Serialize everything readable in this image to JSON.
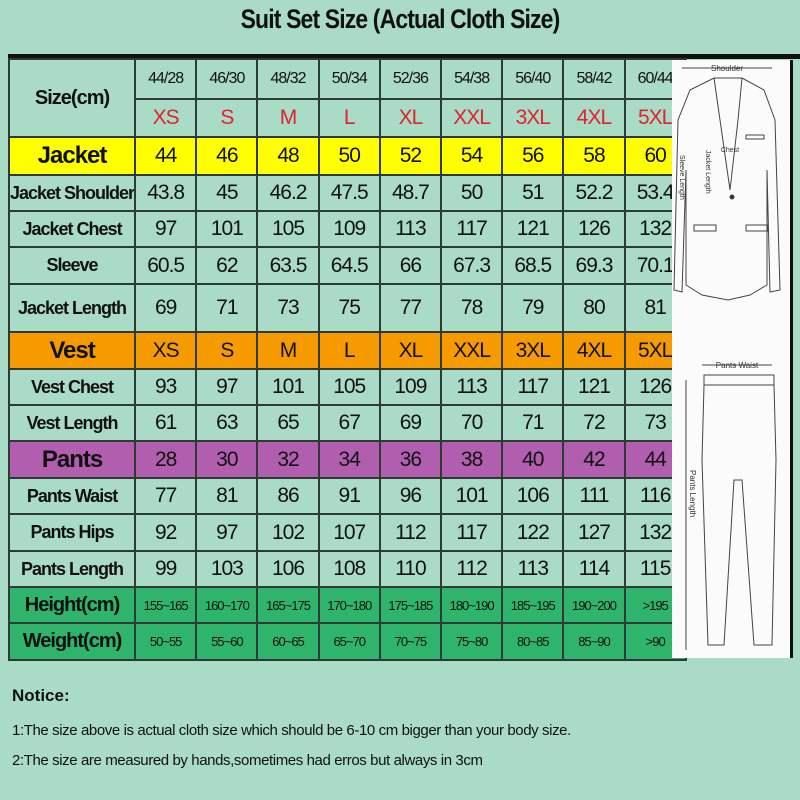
{
  "title": "Suit Set Size (Actual Cloth Size)",
  "colors": {
    "background": "#a9dbc7",
    "jacket": "#ffff00",
    "vest": "#f59b00",
    "pants": "#b15eae",
    "body": "#2fb46b",
    "size_letter": "#e0232c"
  },
  "table": {
    "size_label": "Size(cm)",
    "size_codes": [
      "44/28",
      "46/30",
      "48/32",
      "50/34",
      "52/36",
      "54/38",
      "56/40",
      "58/42",
      "60/44"
    ],
    "size_letters": [
      "XS",
      "S",
      "M",
      "L",
      "XL",
      "XXL",
      "3XL",
      "4XL",
      "5XL"
    ],
    "rows": [
      {
        "label": "Jacket",
        "kind": "jacket",
        "values": [
          "44",
          "46",
          "48",
          "50",
          "52",
          "54",
          "56",
          "58",
          "60"
        ]
      },
      {
        "label": "Jacket Shoulder",
        "kind": "plain",
        "values": [
          "43.8",
          "45",
          "46.2",
          "47.5",
          "48.7",
          "50",
          "51",
          "52.2",
          "53.4"
        ]
      },
      {
        "label": "Jacket Chest",
        "kind": "plain",
        "values": [
          "97",
          "101",
          "105",
          "109",
          "113",
          "117",
          "121",
          "126",
          "132"
        ]
      },
      {
        "label": "Sleeve",
        "kind": "plain",
        "values": [
          "60.5",
          "62",
          "63.5",
          "64.5",
          "66",
          "67.3",
          "68.5",
          "69.3",
          "70.1"
        ]
      },
      {
        "label": "Jacket Length",
        "kind": "plain",
        "values": [
          "69",
          "71",
          "73",
          "75",
          "77",
          "78",
          "79",
          "80",
          "81"
        ]
      },
      {
        "label": "Vest",
        "kind": "vest",
        "values": [
          "XS",
          "S",
          "M",
          "L",
          "XL",
          "XXL",
          "3XL",
          "4XL",
          "5XL"
        ]
      },
      {
        "label": "Vest Chest",
        "kind": "plain",
        "values": [
          "93",
          "97",
          "101",
          "105",
          "109",
          "113",
          "117",
          "121",
          "126"
        ]
      },
      {
        "label": "Vest Length",
        "kind": "plain",
        "values": [
          "61",
          "63",
          "65",
          "67",
          "69",
          "70",
          "71",
          "72",
          "73"
        ]
      },
      {
        "label": "Pants",
        "kind": "pants",
        "values": [
          "28",
          "30",
          "32",
          "34",
          "36",
          "38",
          "40",
          "42",
          "44"
        ]
      },
      {
        "label": "Pants Waist",
        "kind": "plain",
        "values": [
          "77",
          "81",
          "86",
          "91",
          "96",
          "101",
          "106",
          "111",
          "116"
        ]
      },
      {
        "label": "Pants Hips",
        "kind": "plain",
        "values": [
          "92",
          "97",
          "102",
          "107",
          "112",
          "117",
          "122",
          "127",
          "132"
        ]
      },
      {
        "label": "Pants Length",
        "kind": "plain",
        "values": [
          "99",
          "103",
          "106",
          "108",
          "110",
          "112",
          "113",
          "114",
          "115"
        ]
      },
      {
        "label": "Height(cm)",
        "kind": "body",
        "values": [
          "155~165",
          "160~170",
          "165~175",
          "170~180",
          "175~185",
          "180~190",
          "185~195",
          "190~200",
          ">195"
        ]
      },
      {
        "label": "Weight(cm)",
        "kind": "body",
        "values": [
          "50~55",
          "55~60",
          "60~65",
          "65~70",
          "70~75",
          "75~80",
          "80~85",
          "85~90",
          ">90"
        ]
      }
    ]
  },
  "diagram": {
    "shoulder": "Shoulder",
    "chest": "Chest",
    "sleeve_length": "Sleeve Length",
    "jacket_length": "Jacket Length",
    "pants_waist": "Pants Waist",
    "pants_length": "Pants Length"
  },
  "notice": {
    "heading": "Notice:",
    "lines": [
      "1:The size above is actual cloth size which should be 6-10 cm bigger than your body size.",
      "2:The size are measured by hands,sometimes had erros but always in 3cm"
    ]
  }
}
